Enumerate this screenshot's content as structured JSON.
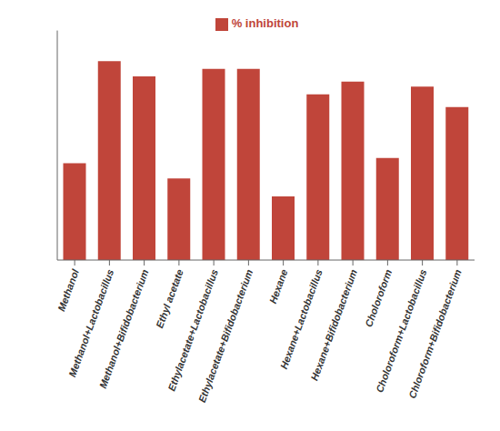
{
  "chart_data": {
    "type": "bar",
    "categories": [
      "Methanol",
      "Methanol+Lactobacillus",
      "Methanol+Bifidobacterium",
      "Ethyl acetate",
      "Ethylacetate+Lactobacillus",
      "Ethylacetate+Bifidobacterium",
      "Hexane",
      "Hexane+Lactobacillus",
      "Hexane+Bifidobacterium",
      "Choloroform",
      "Choloroform+Lactobacillus",
      "Chloroform+Bifidobacterium"
    ],
    "series": [
      {
        "name": "% inhibition",
        "color": "#c0453a",
        "values": [
          38,
          78,
          72,
          32,
          75,
          75,
          25,
          65,
          70,
          40,
          68,
          60
        ]
      }
    ],
    "ylim": [
      0,
      90
    ],
    "grid": false,
    "legend": "top",
    "tick_labels": "x"
  }
}
